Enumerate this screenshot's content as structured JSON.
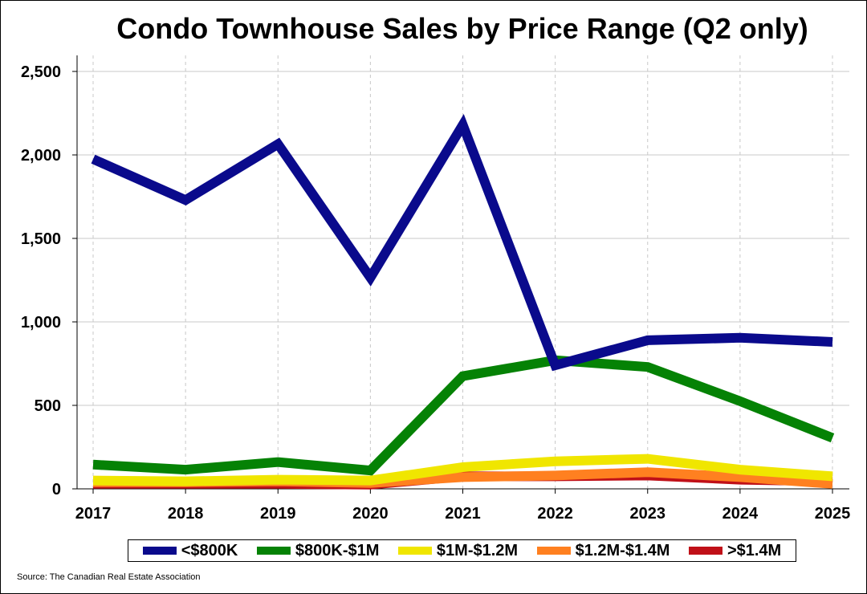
{
  "chart_data": {
    "type": "line",
    "title": "Condo Townhouse Sales by Price Range (Q2 only)",
    "xlabel": "",
    "ylabel": "",
    "categories": [
      "2017",
      "2018",
      "2019",
      "2020",
      "2021",
      "2022",
      "2023",
      "2024",
      "2025"
    ],
    "ylim": [
      0,
      2500
    ],
    "yticks": [
      0,
      500,
      1000,
      1500,
      2000,
      2500
    ],
    "ytick_labels": [
      "0",
      "500",
      "1,000",
      "1,500",
      "2,000",
      "2,500"
    ],
    "grid": true,
    "legend_position": "bottom",
    "series": [
      {
        "name": "<$800K",
        "color": "#0a0a8c",
        "values": [
          1975,
          1730,
          2065,
          1265,
          2180,
          740,
          890,
          905,
          880
        ]
      },
      {
        "name": "$800K-$1M",
        "color": "#058205",
        "values": [
          145,
          115,
          160,
          110,
          675,
          770,
          730,
          525,
          305
        ]
      },
      {
        "name": "$1M-$1.2M",
        "color": "#f0e600",
        "values": [
          50,
          45,
          55,
          50,
          130,
          165,
          180,
          115,
          75
        ]
      },
      {
        "name": "$1.2M-$1.4M",
        "color": "#ff8020",
        "values": [
          40,
          40,
          45,
          35,
          70,
          80,
          100,
          70,
          30
        ]
      },
      {
        "name": ">$1.4M",
        "color": "#c01018",
        "values": [
          30,
          30,
          30,
          25,
          75,
          75,
          80,
          55,
          45
        ]
      }
    ]
  },
  "source": "Source: The Canadian Real Estate Association"
}
